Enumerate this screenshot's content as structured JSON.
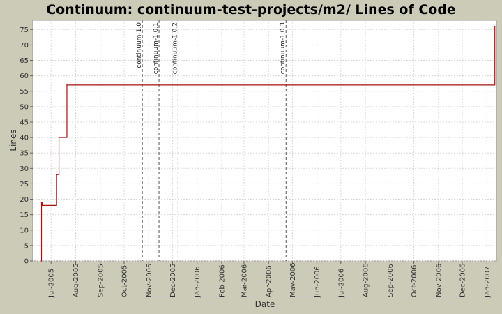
{
  "chart_data": {
    "type": "line",
    "title": "Continuum: continuum-test-projects/m2/ Lines of Code",
    "xlabel": "Date",
    "ylabel": "Lines",
    "ylim": [
      0,
      78
    ],
    "xlim": [
      "2005-06-08",
      "2007-01-13"
    ],
    "yticks": [
      0,
      5,
      10,
      15,
      20,
      25,
      30,
      35,
      40,
      45,
      50,
      55,
      60,
      65,
      70,
      75
    ],
    "xticks": [
      {
        "date": "2005-07-01",
        "label": "Jul-2005"
      },
      {
        "date": "2005-08-01",
        "label": "Aug-2005"
      },
      {
        "date": "2005-09-01",
        "label": "Sep-2005"
      },
      {
        "date": "2005-10-01",
        "label": "Oct-2005"
      },
      {
        "date": "2005-11-01",
        "label": "Nov-2005"
      },
      {
        "date": "2005-12-01",
        "label": "Dec-2005"
      },
      {
        "date": "2006-01-01",
        "label": "Jan-2006"
      },
      {
        "date": "2006-02-01",
        "label": "Feb-2006"
      },
      {
        "date": "2006-03-01",
        "label": "Mar-2006"
      },
      {
        "date": "2006-04-01",
        "label": "Apr-2006"
      },
      {
        "date": "2006-05-01",
        "label": "May-2006"
      },
      {
        "date": "2006-06-01",
        "label": "Jun-2006"
      },
      {
        "date": "2006-07-01",
        "label": "Jul-2006"
      },
      {
        "date": "2006-08-01",
        "label": "Aug-2006"
      },
      {
        "date": "2006-09-01",
        "label": "Sep-2006"
      },
      {
        "date": "2006-10-01",
        "label": "Oct-2006"
      },
      {
        "date": "2006-11-01",
        "label": "Nov-2006"
      },
      {
        "date": "2006-12-01",
        "label": "Dec-2006"
      },
      {
        "date": "2007-01-01",
        "label": "Jan-2007"
      }
    ],
    "grid": true,
    "series": [
      {
        "step": true,
        "color": "#aa1111",
        "points": [
          {
            "x": "2005-06-19",
            "y": 0
          },
          {
            "x": "2005-06-19",
            "y": 19
          },
          {
            "x": "2005-06-20",
            "y": 18
          },
          {
            "x": "2005-07-08",
            "y": 28
          },
          {
            "x": "2005-07-11",
            "y": 40
          },
          {
            "x": "2005-07-21",
            "y": 57
          },
          {
            "x": "2007-01-11",
            "y": 76
          }
        ]
      }
    ],
    "markers": [
      {
        "date": "2005-10-24",
        "label": "continuum-1.0"
      },
      {
        "date": "2005-11-14",
        "label": "continuum-1.0.1"
      },
      {
        "date": "2005-12-08",
        "label": "continuum-1.0.2"
      },
      {
        "date": "2006-04-23",
        "label": "continuum-1.0.3"
      }
    ],
    "colors": {
      "background": "#cccbb8",
      "plot": "#ffffff",
      "grid": "#d8d8d8",
      "line": "#aa1111",
      "marker": "#555555"
    }
  }
}
